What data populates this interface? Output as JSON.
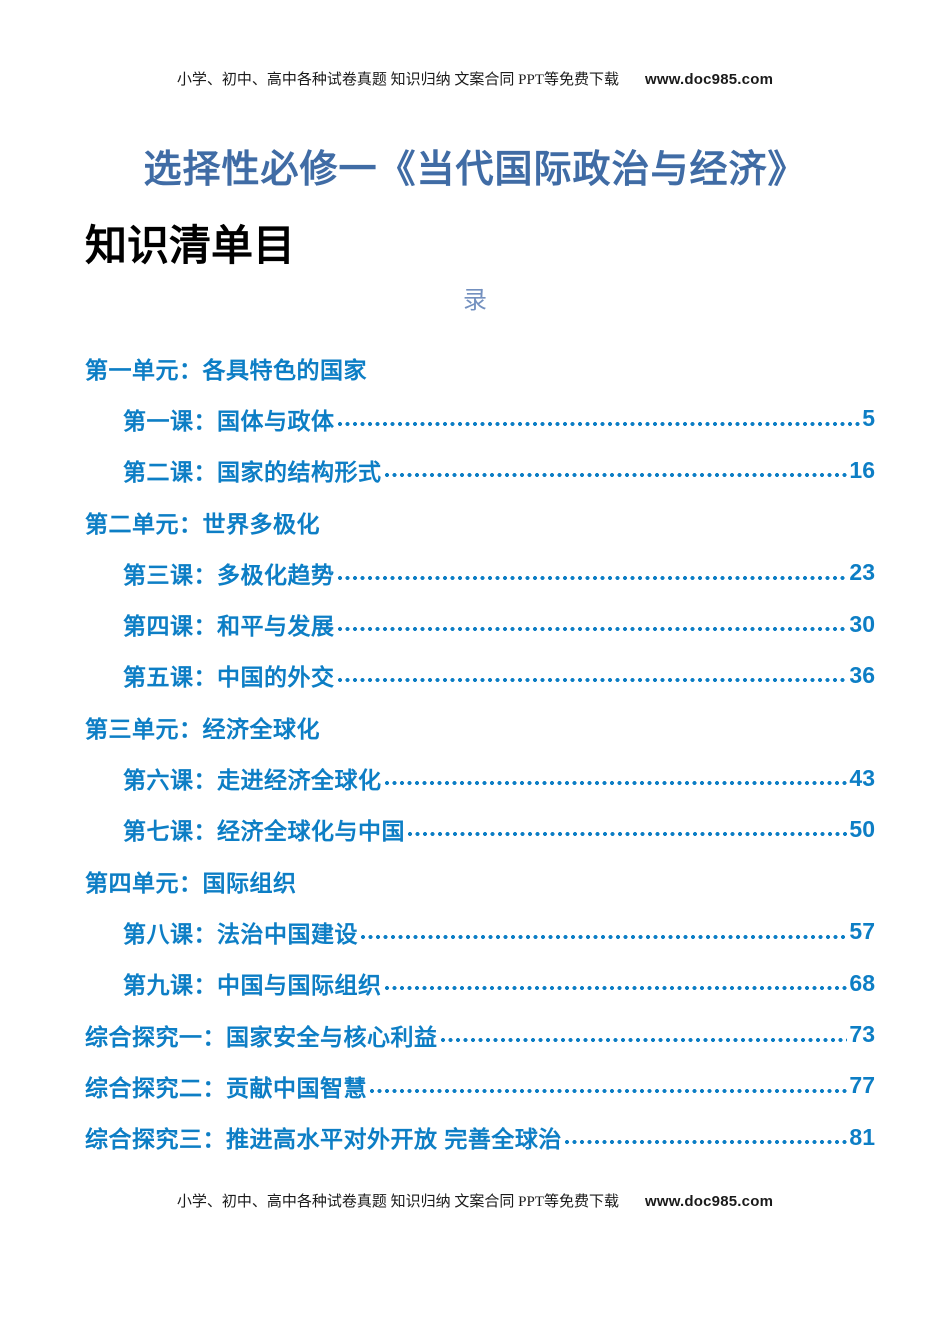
{
  "header": {
    "promo": "小学、初中、高中各种试卷真题  知识归纳  文案合同  PPT等免费下载",
    "site": "www.doc985.com"
  },
  "footer": {
    "promo": "小学、初中、高中各种试卷真题  知识归纳  文案合同  PPT等免费下载",
    "site": "www.doc985.com"
  },
  "document": {
    "title": "选择性必修一《当代国际政治与经济》",
    "heading_main": "知识清单目",
    "heading_tail": "录"
  },
  "colors": {
    "toc_blue": "#0d7ec5",
    "title_blue": "#406ca5",
    "tail_blue": "#7390bf"
  },
  "toc": {
    "entries": [
      {
        "label": "第一单元：各具特色的国家",
        "page": "",
        "type": "unit"
      },
      {
        "label": "第一课：国体与政体",
        "page": "5",
        "type": "course"
      },
      {
        "label": "第二课：国家的结构形式",
        "page": "16",
        "type": "course"
      },
      {
        "label": "第二单元：世界多极化",
        "page": "",
        "type": "unit"
      },
      {
        "label": "第三课：多极化趋势",
        "page": "23",
        "type": "course"
      },
      {
        "label": "第四课：和平与发展",
        "page": "30",
        "type": "course"
      },
      {
        "label": "第五课：中国的外交",
        "page": "36",
        "type": "course"
      },
      {
        "label": "第三单元：经济全球化",
        "page": "",
        "type": "unit"
      },
      {
        "label": "第六课：走进经济全球化",
        "page": "43",
        "type": "course"
      },
      {
        "label": "第七课：经济全球化与中国",
        "page": "50",
        "type": "course"
      },
      {
        "label": "第四单元：国际组织",
        "page": "",
        "type": "unit"
      },
      {
        "label": "第八课：法治中国建设",
        "page": "57",
        "type": "course"
      },
      {
        "label": "第九课：中国与国际组织",
        "page": "68",
        "type": "course"
      },
      {
        "label": "综合探究一：国家安全与核心利益",
        "page": "73",
        "type": "explore"
      },
      {
        "label": "综合探究二：贡献中国智慧",
        "page": "77",
        "type": "explore"
      },
      {
        "label": "综合探究三：推进高水平对外开放 完善全球治",
        "page": "81",
        "type": "explore"
      }
    ]
  }
}
